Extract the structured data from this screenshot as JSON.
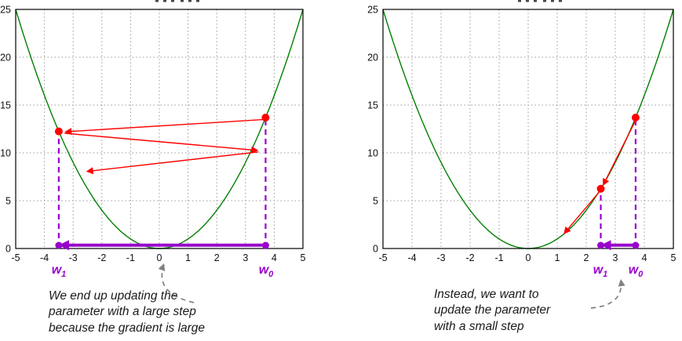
{
  "figure": {
    "background": "#ffffff"
  },
  "colors": {
    "curve": "#008000",
    "grid": "#999999",
    "axis_border": "#000000",
    "marker_red": "#ff0000",
    "purple": "#9900cc",
    "annotation_text": "#1a1a1a",
    "callout_gray": "#808080"
  },
  "chart_data": [
    {
      "type": "line",
      "panel": "left",
      "title": "",
      "xlabel": "",
      "ylabel": "",
      "function": "y = x^2",
      "xlim": [
        -5,
        5
      ],
      "ylim": [
        0,
        25
      ],
      "x_ticks": [
        -5,
        -4,
        -3,
        -2,
        -1,
        0,
        1,
        2,
        3,
        4,
        5
      ],
      "y_ticks": [
        0,
        5,
        10,
        15,
        20,
        25
      ],
      "grid": true,
      "curve_color": "#008000",
      "points": [
        {
          "name": "w0",
          "x": 3.7,
          "y": 13.69
        },
        {
          "name": "w1",
          "x": -3.5,
          "y": 12.25
        }
      ],
      "gradient_arrows": [
        {
          "from": [
            3.7,
            13.5
          ],
          "to": [
            -3.3,
            12.2
          ]
        },
        {
          "from": [
            -3.3,
            12.05
          ],
          "to": [
            3.45,
            10.25
          ]
        },
        {
          "from": [
            3.45,
            10.1
          ],
          "to": [
            -2.55,
            8.05
          ]
        }
      ],
      "axis_step_arrow": {
        "from": [
          3.7,
          0.35
        ],
        "to": [
          -3.5,
          0.35
        ]
      },
      "dashed_drops": [
        {
          "x": 3.7,
          "y": 13.69
        },
        {
          "x": -3.5,
          "y": 12.25
        }
      ],
      "axis_dots": [
        3.7,
        -3.5
      ],
      "w_labels": [
        {
          "base": "w",
          "sub": "1"
        },
        {
          "base": "w",
          "sub": "0"
        }
      ],
      "annotation": {
        "lines": [
          "We end up updating the",
          "parameter with a large step",
          "because the gradient is large"
        ]
      }
    },
    {
      "type": "line",
      "panel": "right",
      "title": "",
      "xlabel": "",
      "ylabel": "",
      "function": "y = x^2",
      "xlim": [
        -5,
        5
      ],
      "ylim": [
        0,
        25
      ],
      "x_ticks": [
        -5,
        -4,
        -3,
        -2,
        -1,
        0,
        1,
        2,
        3,
        4,
        5
      ],
      "y_ticks": [
        0,
        5,
        10,
        15,
        20,
        25
      ],
      "grid": true,
      "curve_color": "#008000",
      "points": [
        {
          "name": "w0",
          "x": 3.7,
          "y": 13.69
        },
        {
          "name": "w1",
          "x": 2.5,
          "y": 6.25
        }
      ],
      "gradient_arrows": [
        {
          "from": [
            3.7,
            13.4
          ],
          "to": [
            2.57,
            6.55
          ]
        },
        {
          "from": [
            2.5,
            6.1
          ],
          "to": [
            1.22,
            1.5
          ]
        }
      ],
      "axis_step_arrow": {
        "from": [
          3.7,
          0.35
        ],
        "to": [
          2.5,
          0.35
        ]
      },
      "dashed_drops": [
        {
          "x": 3.7,
          "y": 13.69
        },
        {
          "x": 2.5,
          "y": 6.25
        }
      ],
      "axis_dots": [
        3.7,
        2.5
      ],
      "w_labels": [
        {
          "base": "w",
          "sub": "1"
        },
        {
          "base": "w",
          "sub": "0"
        }
      ],
      "annotation": {
        "lines": [
          "Instead, we want to",
          "update the parameter",
          "with a small step"
        ]
      }
    }
  ]
}
